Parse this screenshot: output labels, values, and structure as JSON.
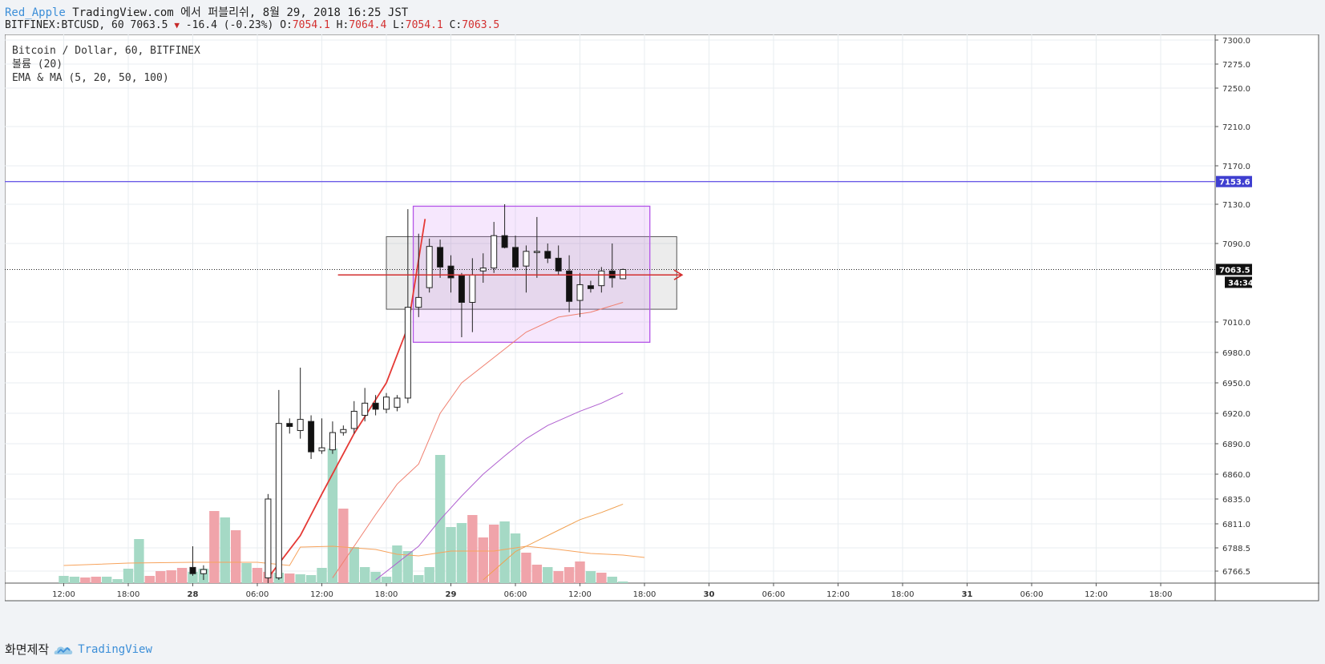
{
  "header": {
    "author": "Red_Apple",
    "published_line": "TradingView.com 에서 퍼블리쉬, 8월 29, 2018 16:25 JST",
    "symbol": "BITFINEX:BTCUSD, 60",
    "last": "7063.5",
    "change_arrow": "▼",
    "change": "-16.4 (-0.23%)",
    "o_label": "O:",
    "o_value": "7054.1",
    "h_label": "H:",
    "h_value": "7064.4",
    "l_label": "L:",
    "l_value": "7054.1",
    "c_label": "C:",
    "c_value": "7063.5"
  },
  "legend": {
    "line1": "Bitcoin / Dollar, 60, BITFINEX",
    "line2": "볼륨 (20)",
    "line3": "EMA & MA (5, 20, 50, 100)"
  },
  "footer": {
    "made_with": "화면제작",
    "brand": "TradingView"
  },
  "colors": {
    "up_volume": "#a5d9c5",
    "down_volume": "#f0a4aa",
    "resistance": "#6c5ce7",
    "arrow": "#d32f2f",
    "purple_box": "#b455e8",
    "gray_box": "#555555"
  },
  "chart_data": {
    "type": "candlestick",
    "symbol": "BITFINEX:BTCUSD",
    "interval": "60",
    "y_ticks": [
      7300.0,
      7275.0,
      7250.0,
      7210.0,
      7170.0,
      7130.0,
      7090.0,
      7010.0,
      6980.0,
      6950.0,
      6920.0,
      6890.0,
      6860.0,
      6835.0,
      6811.0,
      6788.5,
      6766.5
    ],
    "y_tick_labels": [
      "7300.0",
      "7275.0",
      "7250.0",
      "7210.0",
      "7170.0",
      "7130.0",
      "7090.0",
      "7010.0",
      "6980.0",
      "6950.0",
      "6920.0",
      "6890.0",
      "6860.0",
      "6835.0",
      "6811.0",
      "6788.5",
      "6766.5"
    ],
    "x_ticks": [
      {
        "label": "12:00",
        "bar": 0
      },
      {
        "label": "18:00",
        "bar": 6
      },
      {
        "label": "28",
        "bar": 12,
        "bold": true
      },
      {
        "label": "06:00",
        "bar": 18
      },
      {
        "label": "12:00",
        "bar": 24
      },
      {
        "label": "18:00",
        "bar": 30
      },
      {
        "label": "29",
        "bar": 36,
        "bold": true
      },
      {
        "label": "06:00",
        "bar": 42
      },
      {
        "label": "12:00",
        "bar": 48
      },
      {
        "label": "18:00",
        "bar": 54
      },
      {
        "label": "30",
        "bar": 60,
        "bold": true
      },
      {
        "label": "06:00",
        "bar": 66
      },
      {
        "label": "12:00",
        "bar": 72
      },
      {
        "label": "18:00",
        "bar": 78
      },
      {
        "label": "31",
        "bar": 84,
        "bold": true
      },
      {
        "label": "06:00",
        "bar": 90
      },
      {
        "label": "12:00",
        "bar": 96
      },
      {
        "label": "18:00",
        "bar": 102
      }
    ],
    "price_label": "7063.5",
    "timer_label": "34:34",
    "resistance_label": "7153.6",
    "resistance": 7153.6,
    "last_price": 7063.5,
    "candles": [
      {
        "bar": 12,
        "o": 6770,
        "h": 6790,
        "l": 6762,
        "c": 6764
      },
      {
        "bar": 13,
        "o": 6764,
        "h": 6772,
        "l": 6758,
        "c": 6768
      },
      {
        "bar": 19,
        "o": 6760,
        "h": 6840,
        "l": 6755,
        "c": 6835
      },
      {
        "bar": 20,
        "o": 6760,
        "h": 6943,
        "l": 6758,
        "c": 6910
      },
      {
        "bar": 21,
        "o": 6910,
        "h": 6915,
        "l": 6900,
        "c": 6907
      },
      {
        "bar": 22,
        "o": 6903,
        "h": 6965,
        "l": 6895,
        "c": 6914
      },
      {
        "bar": 23,
        "o": 6912,
        "h": 6918,
        "l": 6875,
        "c": 6882
      },
      {
        "bar": 24,
        "o": 6883,
        "h": 6915,
        "l": 6880,
        "c": 6886
      },
      {
        "bar": 25,
        "o": 6884,
        "h": 6912,
        "l": 6880,
        "c": 6901
      },
      {
        "bar": 26,
        "o": 6901,
        "h": 6908,
        "l": 6898,
        "c": 6904
      },
      {
        "bar": 27,
        "o": 6905,
        "h": 6932,
        "l": 6900,
        "c": 6922
      },
      {
        "bar": 28,
        "o": 6918,
        "h": 6945,
        "l": 6912,
        "c": 6930
      },
      {
        "bar": 29,
        "o": 6930,
        "h": 6938,
        "l": 6918,
        "c": 6924
      },
      {
        "bar": 30,
        "o": 6924,
        "h": 6940,
        "l": 6920,
        "c": 6936
      },
      {
        "bar": 31,
        "o": 6926,
        "h": 6938,
        "l": 6922,
        "c": 6935
      },
      {
        "bar": 32,
        "o": 6935,
        "h": 7125,
        "l": 6930,
        "c": 7025
      },
      {
        "bar": 33,
        "o": 7025,
        "h": 7100,
        "l": 7015,
        "c": 7035
      },
      {
        "bar": 34,
        "o": 7045,
        "h": 7095,
        "l": 7040,
        "c": 7087
      },
      {
        "bar": 35,
        "o": 7086,
        "h": 7094,
        "l": 7055,
        "c": 7066
      },
      {
        "bar": 36,
        "o": 7067,
        "h": 7078,
        "l": 7040,
        "c": 7055
      },
      {
        "bar": 37,
        "o": 7057,
        "h": 7060,
        "l": 6995,
        "c": 7030
      },
      {
        "bar": 38,
        "o": 7030,
        "h": 7075,
        "l": 7000,
        "c": 7058
      },
      {
        "bar": 39,
        "o": 7062,
        "h": 7080,
        "l": 7050,
        "c": 7065
      },
      {
        "bar": 40,
        "o": 7065,
        "h": 7112,
        "l": 7060,
        "c": 7098
      },
      {
        "bar": 41,
        "o": 7098,
        "h": 7130,
        "l": 7085,
        "c": 7086
      },
      {
        "bar": 42,
        "o": 7086,
        "h": 7098,
        "l": 7062,
        "c": 7066
      },
      {
        "bar": 43,
        "o": 7067,
        "h": 7088,
        "l": 7040,
        "c": 7082
      },
      {
        "bar": 44,
        "o": 7082,
        "h": 7117,
        "l": 7055,
        "c": 7082
      },
      {
        "bar": 45,
        "o": 7082,
        "h": 7090,
        "l": 7070,
        "c": 7075
      },
      {
        "bar": 46,
        "o": 7075,
        "h": 7088,
        "l": 7058,
        "c": 7062
      },
      {
        "bar": 47,
        "o": 7062,
        "h": 7078,
        "l": 7020,
        "c": 7031
      },
      {
        "bar": 48,
        "o": 7032,
        "h": 7060,
        "l": 7015,
        "c": 7048
      },
      {
        "bar": 49,
        "o": 7047,
        "h": 7052,
        "l": 7040,
        "c": 7044
      },
      {
        "bar": 50,
        "o": 7047,
        "h": 7066,
        "l": 7040,
        "c": 7062
      },
      {
        "bar": 51,
        "o": 7062,
        "h": 7090,
        "l": 7045,
        "c": 7055
      },
      {
        "bar": 52,
        "o": 7054.1,
        "h": 7064.4,
        "l": 7054.1,
        "c": 7063.5
      }
    ],
    "volume_bars": [
      {
        "bar": 0,
        "v": 9,
        "d": "up"
      },
      {
        "bar": 1,
        "v": 8,
        "d": "up"
      },
      {
        "bar": 2,
        "v": 7,
        "d": "down"
      },
      {
        "bar": 3,
        "v": 8,
        "d": "down"
      },
      {
        "bar": 4,
        "v": 8,
        "d": "up"
      },
      {
        "bar": 5,
        "v": 5,
        "d": "up"
      },
      {
        "bar": 6,
        "v": 18,
        "d": "up"
      },
      {
        "bar": 7,
        "v": 55,
        "d": "up"
      },
      {
        "bar": 8,
        "v": 9,
        "d": "down"
      },
      {
        "bar": 9,
        "v": 15,
        "d": "down"
      },
      {
        "bar": 10,
        "v": 16,
        "d": "down"
      },
      {
        "bar": 11,
        "v": 19,
        "d": "down"
      },
      {
        "bar": 12,
        "v": 14,
        "d": "up"
      },
      {
        "bar": 13,
        "v": 18,
        "d": "up"
      },
      {
        "bar": 14,
        "v": 90,
        "d": "down"
      },
      {
        "bar": 15,
        "v": 82,
        "d": "up"
      },
      {
        "bar": 16,
        "v": 66,
        "d": "down"
      },
      {
        "bar": 17,
        "v": 25,
        "d": "up"
      },
      {
        "bar": 18,
        "v": 19,
        "d": "down"
      },
      {
        "bar": 19,
        "v": 14,
        "d": "down"
      },
      {
        "bar": 20,
        "v": 13,
        "d": "up"
      },
      {
        "bar": 21,
        "v": 12,
        "d": "down"
      },
      {
        "bar": 22,
        "v": 11,
        "d": "up"
      },
      {
        "bar": 23,
        "v": 10,
        "d": "up"
      },
      {
        "bar": 24,
        "v": 19,
        "d": "up"
      },
      {
        "bar": 25,
        "v": 168,
        "d": "up"
      },
      {
        "bar": 26,
        "v": 93,
        "d": "down"
      },
      {
        "bar": 27,
        "v": 45,
        "d": "up"
      },
      {
        "bar": 28,
        "v": 20,
        "d": "up"
      },
      {
        "bar": 29,
        "v": 14,
        "d": "up"
      },
      {
        "bar": 30,
        "v": 8,
        "d": "up"
      },
      {
        "bar": 31,
        "v": 47,
        "d": "up"
      },
      {
        "bar": 32,
        "v": 40,
        "d": "up"
      },
      {
        "bar": 33,
        "v": 10,
        "d": "up"
      },
      {
        "bar": 34,
        "v": 20,
        "d": "up"
      },
      {
        "bar": 35,
        "v": 160,
        "d": "up"
      },
      {
        "bar": 36,
        "v": 70,
        "d": "up"
      },
      {
        "bar": 37,
        "v": 75,
        "d": "up"
      },
      {
        "bar": 38,
        "v": 85,
        "d": "down"
      },
      {
        "bar": 39,
        "v": 57,
        "d": "down"
      },
      {
        "bar": 40,
        "v": 73,
        "d": "down"
      },
      {
        "bar": 41,
        "v": 77,
        "d": "up"
      },
      {
        "bar": 42,
        "v": 62,
        "d": "up"
      },
      {
        "bar": 43,
        "v": 38,
        "d": "down"
      },
      {
        "bar": 44,
        "v": 23,
        "d": "down"
      },
      {
        "bar": 45,
        "v": 20,
        "d": "up"
      },
      {
        "bar": 46,
        "v": 15,
        "d": "down"
      },
      {
        "bar": 47,
        "v": 20,
        "d": "down"
      },
      {
        "bar": 48,
        "v": 27,
        "d": "down"
      },
      {
        "bar": 49,
        "v": 15,
        "d": "up"
      },
      {
        "bar": 50,
        "v": 13,
        "d": "down"
      },
      {
        "bar": 51,
        "v": 8,
        "d": "up"
      },
      {
        "bar": 52,
        "v": 2,
        "d": "up"
      }
    ],
    "volume_ma": [
      [
        0,
        22
      ],
      [
        6,
        25
      ],
      [
        12,
        26
      ],
      [
        18,
        26
      ],
      [
        21,
        22
      ],
      [
        22,
        45
      ],
      [
        25,
        46
      ],
      [
        27,
        44
      ],
      [
        29,
        42
      ],
      [
        31,
        36
      ],
      [
        33,
        34
      ],
      [
        36,
        40
      ],
      [
        40,
        40
      ],
      [
        43,
        46
      ],
      [
        46,
        42
      ],
      [
        49,
        37
      ],
      [
        52,
        35
      ],
      [
        54,
        32
      ]
    ],
    "ma_lines": [
      {
        "name": "EMA5",
        "color": "#e53935",
        "width": 1.8,
        "points": [
          [
            19,
            6760
          ],
          [
            22,
            6800
          ],
          [
            24,
            6840
          ],
          [
            27,
            6900
          ],
          [
            30,
            6950
          ],
          [
            32,
            7005
          ],
          [
            33.6,
            7115
          ]
        ]
      },
      {
        "name": "MA20",
        "color": "#f08070",
        "width": 1,
        "points": [
          [
            25,
            6760
          ],
          [
            27,
            6790
          ],
          [
            29,
            6820
          ],
          [
            31,
            6850
          ],
          [
            33,
            6870
          ],
          [
            35,
            6920
          ],
          [
            37,
            6950
          ],
          [
            40,
            6975
          ],
          [
            43,
            7000
          ],
          [
            46,
            7015
          ],
          [
            49,
            7020
          ],
          [
            52,
            7030
          ]
        ]
      },
      {
        "name": "MA50",
        "color": "#b060d0",
        "width": 1,
        "points": [
          [
            29,
            6758
          ],
          [
            33,
            6790
          ],
          [
            35,
            6815
          ],
          [
            37,
            6838
          ],
          [
            39,
            6860
          ],
          [
            41,
            6878
          ],
          [
            43,
            6895
          ],
          [
            45,
            6908
          ],
          [
            48,
            6922
          ],
          [
            50,
            6930
          ],
          [
            52,
            6940
          ]
        ]
      },
      {
        "name": "MA100",
        "color": "#f0a050",
        "width": 1,
        "points": [
          [
            39,
            6758
          ],
          [
            42,
            6785
          ],
          [
            44,
            6795
          ],
          [
            46,
            6805
          ],
          [
            48,
            6815
          ],
          [
            50,
            6822
          ],
          [
            52,
            6830
          ]
        ]
      }
    ],
    "shapes": {
      "gray_box": {
        "bar1": 30,
        "bar2": 57,
        "p1": 7097,
        "p2": 7023
      },
      "purple_box": {
        "bar1": 32.5,
        "bar2": 54.5,
        "p1": 7128,
        "p2": 6990
      },
      "arrow": {
        "bar1": 25.5,
        "bar2": 57.5,
        "price": 7058
      }
    }
  }
}
